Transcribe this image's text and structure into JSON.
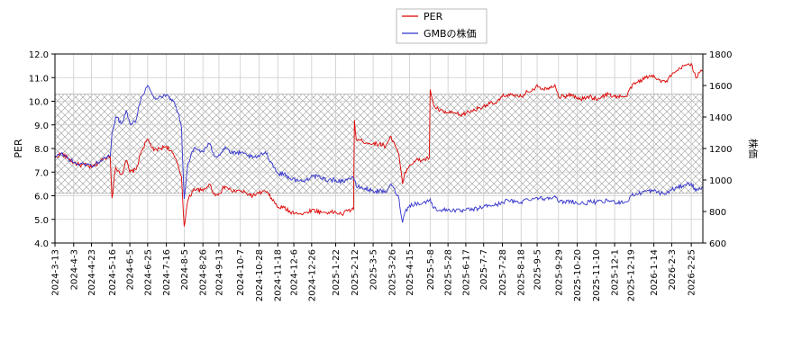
{
  "chart_data": {
    "type": "line",
    "xlabel": "",
    "ylabel_left": "PER",
    "ylabel_right": "株価",
    "ylim_left": [
      4.0,
      12.0
    ],
    "yticks_left": [
      "4.0",
      "5.0",
      "6.0",
      "7.0",
      "8.0",
      "9.0",
      "10.0",
      "11.0",
      "12.0"
    ],
    "ylim_right": [
      600,
      1800
    ],
    "yticks_right": [
      "600",
      "800",
      "1000",
      "1200",
      "1400",
      "1600",
      "1800"
    ],
    "x_start": "2024-03-13",
    "x_end": "2026-03-10",
    "xtick_labels": [
      "2024-3-13",
      "2024-4-3",
      "2024-4-23",
      "2024-5-16",
      "2024-6-5",
      "2024-6-25",
      "2024-7-16",
      "2024-8-5",
      "2024-8-26",
      "2024-9-13",
      "2024-10-7",
      "2024-10-28",
      "2024-11-18",
      "2024-12-6",
      "2024-12-26",
      "2025-1-22",
      "2025-2-12",
      "2025-3-5",
      "2025-3-26",
      "2025-4-15",
      "2025-5-8",
      "2025-5-28",
      "2025-6-17",
      "2025-7-7",
      "2025-7-28",
      "2025-8-18",
      "2025-9-5",
      "2025-9-29",
      "2025-10-20",
      "2025-11-10",
      "2025-12-1",
      "2025-12-19",
      "2026-1-14",
      "2026-2-3",
      "2026-2-25"
    ],
    "shaded_band_left": [
      6.1,
      10.3
    ],
    "grid": true,
    "legend_position": "top-center",
    "colors": {
      "per": "#dd0000",
      "price": "#3333cc"
    },
    "series": [
      {
        "name": "PER",
        "axis": "left",
        "points": [
          [
            "2024-03-13",
            7.6
          ],
          [
            "2024-03-20",
            7.8
          ],
          [
            "2024-03-27",
            7.6
          ],
          [
            "2024-04-03",
            7.4
          ],
          [
            "2024-04-10",
            7.3
          ],
          [
            "2024-04-17",
            7.3
          ],
          [
            "2024-04-23",
            7.2
          ],
          [
            "2024-05-01",
            7.4
          ],
          [
            "2024-05-08",
            7.6
          ],
          [
            "2024-05-14",
            7.7
          ],
          [
            "2024-05-16",
            5.9
          ],
          [
            "2024-05-20",
            7.2
          ],
          [
            "2024-05-27",
            6.9
          ],
          [
            "2024-06-01",
            7.5
          ],
          [
            "2024-06-05",
            7.0
          ],
          [
            "2024-06-12",
            7.1
          ],
          [
            "2024-06-18",
            7.9
          ],
          [
            "2024-06-25",
            8.4
          ],
          [
            "2024-07-02",
            7.9
          ],
          [
            "2024-07-09",
            8.0
          ],
          [
            "2024-07-16",
            8.1
          ],
          [
            "2024-07-23",
            7.8
          ],
          [
            "2024-07-29",
            7.3
          ],
          [
            "2024-08-02",
            6.8
          ],
          [
            "2024-08-05",
            4.7
          ],
          [
            "2024-08-09",
            5.8
          ],
          [
            "2024-08-16",
            6.3
          ],
          [
            "2024-08-26",
            6.2
          ],
          [
            "2024-09-02",
            6.5
          ],
          [
            "2024-09-09",
            6.0
          ],
          [
            "2024-09-13",
            6.1
          ],
          [
            "2024-09-20",
            6.4
          ],
          [
            "2024-09-27",
            6.2
          ],
          [
            "2024-10-07",
            6.2
          ],
          [
            "2024-10-14",
            6.1
          ],
          [
            "2024-10-21",
            6.0
          ],
          [
            "2024-10-28",
            6.1
          ],
          [
            "2024-11-04",
            6.2
          ],
          [
            "2024-11-11",
            5.9
          ],
          [
            "2024-11-18",
            5.5
          ],
          [
            "2024-11-25",
            5.5
          ],
          [
            "2024-12-02",
            5.3
          ],
          [
            "2024-12-09",
            5.3
          ],
          [
            "2024-12-16",
            5.2
          ],
          [
            "2024-12-20",
            5.3
          ],
          [
            "2024-12-26",
            5.4
          ],
          [
            "2025-01-06",
            5.3
          ],
          [
            "2025-01-14",
            5.3
          ],
          [
            "2025-01-22",
            5.3
          ],
          [
            "2025-01-29",
            5.2
          ],
          [
            "2025-02-05",
            5.4
          ],
          [
            "2025-02-11",
            5.4
          ],
          [
            "2025-02-12",
            9.2
          ],
          [
            "2025-02-14",
            8.4
          ],
          [
            "2025-02-21",
            8.3
          ],
          [
            "2025-03-05",
            8.2
          ],
          [
            "2025-03-12",
            8.2
          ],
          [
            "2025-03-19",
            8.1
          ],
          [
            "2025-03-24",
            8.5
          ],
          [
            "2025-03-28",
            8.3
          ],
          [
            "2025-04-03",
            7.7
          ],
          [
            "2025-04-07",
            6.5
          ],
          [
            "2025-04-10",
            7.0
          ],
          [
            "2025-04-15",
            7.3
          ],
          [
            "2025-04-22",
            7.5
          ],
          [
            "2025-04-29",
            7.5
          ],
          [
            "2025-05-07",
            7.6
          ],
          [
            "2025-05-08",
            10.5
          ],
          [
            "2025-05-12",
            9.8
          ],
          [
            "2025-05-19",
            9.6
          ],
          [
            "2025-05-28",
            9.5
          ],
          [
            "2025-06-04",
            9.5
          ],
          [
            "2025-06-11",
            9.4
          ],
          [
            "2025-06-17",
            9.5
          ],
          [
            "2025-06-24",
            9.6
          ],
          [
            "2025-07-01",
            9.7
          ],
          [
            "2025-07-07",
            9.8
          ],
          [
            "2025-07-14",
            9.9
          ],
          [
            "2025-07-21",
            9.9
          ],
          [
            "2025-07-28",
            10.2
          ],
          [
            "2025-08-04",
            10.3
          ],
          [
            "2025-08-11",
            10.2
          ],
          [
            "2025-08-18",
            10.2
          ],
          [
            "2025-08-25",
            10.4
          ],
          [
            "2025-09-01",
            10.5
          ],
          [
            "2025-09-05",
            10.7
          ],
          [
            "2025-09-12",
            10.5
          ],
          [
            "2025-09-19",
            10.6
          ],
          [
            "2025-09-25",
            10.7
          ],
          [
            "2025-09-29",
            10.2
          ],
          [
            "2025-10-06",
            10.2
          ],
          [
            "2025-10-13",
            10.3
          ],
          [
            "2025-10-20",
            10.1
          ],
          [
            "2025-10-27",
            10.1
          ],
          [
            "2025-11-03",
            10.2
          ],
          [
            "2025-11-10",
            10.1
          ],
          [
            "2025-11-17",
            10.2
          ],
          [
            "2025-11-24",
            10.3
          ],
          [
            "2025-12-01",
            10.2
          ],
          [
            "2025-12-08",
            10.2
          ],
          [
            "2025-12-15",
            10.2
          ],
          [
            "2025-12-19",
            10.6
          ],
          [
            "2025-12-26",
            10.8
          ],
          [
            "2026-01-05",
            11.0
          ],
          [
            "2026-01-14",
            11.1
          ],
          [
            "2026-01-20",
            10.9
          ],
          [
            "2026-01-27",
            10.8
          ],
          [
            "2026-02-03",
            11.1
          ],
          [
            "2026-02-10",
            11.3
          ],
          [
            "2026-02-17",
            11.5
          ],
          [
            "2026-02-25",
            11.6
          ],
          [
            "2026-03-02",
            11.0
          ],
          [
            "2026-03-06",
            11.2
          ],
          [
            "2026-03-10",
            11.3
          ]
        ]
      },
      {
        "name": "GMBの株価",
        "axis": "right",
        "points": [
          [
            "2024-03-13",
            1140
          ],
          [
            "2024-03-20",
            1170
          ],
          [
            "2024-03-27",
            1140
          ],
          [
            "2024-04-03",
            1110
          ],
          [
            "2024-04-10",
            1100
          ],
          [
            "2024-04-17",
            1100
          ],
          [
            "2024-04-23",
            1090
          ],
          [
            "2024-05-01",
            1110
          ],
          [
            "2024-05-08",
            1140
          ],
          [
            "2024-05-14",
            1150
          ],
          [
            "2024-05-16",
            1300
          ],
          [
            "2024-05-20",
            1400
          ],
          [
            "2024-05-27",
            1360
          ],
          [
            "2024-06-01",
            1440
          ],
          [
            "2024-06-05",
            1360
          ],
          [
            "2024-06-12",
            1380
          ],
          [
            "2024-06-18",
            1530
          ],
          [
            "2024-06-25",
            1600
          ],
          [
            "2024-07-02",
            1520
          ],
          [
            "2024-07-09",
            1530
          ],
          [
            "2024-07-16",
            1540
          ],
          [
            "2024-07-23",
            1510
          ],
          [
            "2024-07-29",
            1430
          ],
          [
            "2024-08-02",
            1330
          ],
          [
            "2024-08-05",
            880
          ],
          [
            "2024-08-09",
            1100
          ],
          [
            "2024-08-16",
            1200
          ],
          [
            "2024-08-26",
            1180
          ],
          [
            "2024-09-02",
            1230
          ],
          [
            "2024-09-09",
            1150
          ],
          [
            "2024-09-13",
            1160
          ],
          [
            "2024-09-20",
            1210
          ],
          [
            "2024-09-27",
            1170
          ],
          [
            "2024-10-07",
            1170
          ],
          [
            "2024-10-14",
            1160
          ],
          [
            "2024-10-21",
            1140
          ],
          [
            "2024-10-28",
            1150
          ],
          [
            "2024-11-04",
            1180
          ],
          [
            "2024-11-11",
            1110
          ],
          [
            "2024-11-18",
            1040
          ],
          [
            "2024-11-25",
            1040
          ],
          [
            "2024-12-02",
            1010
          ],
          [
            "2024-12-09",
            1000
          ],
          [
            "2024-12-16",
            990
          ],
          [
            "2024-12-20",
            1000
          ],
          [
            "2024-12-26",
            1030
          ],
          [
            "2025-01-06",
            1010
          ],
          [
            "2025-01-14",
            1000
          ],
          [
            "2025-01-22",
            1000
          ],
          [
            "2025-01-29",
            990
          ],
          [
            "2025-02-05",
            1010
          ],
          [
            "2025-02-11",
            1010
          ],
          [
            "2025-02-12",
            1000
          ],
          [
            "2025-02-14",
            960
          ],
          [
            "2025-02-21",
            950
          ],
          [
            "2025-03-05",
            930
          ],
          [
            "2025-03-12",
            930
          ],
          [
            "2025-03-19",
            920
          ],
          [
            "2025-03-24",
            970
          ],
          [
            "2025-03-28",
            950
          ],
          [
            "2025-04-03",
            880
          ],
          [
            "2025-04-07",
            730
          ],
          [
            "2025-04-10",
            800
          ],
          [
            "2025-04-15",
            840
          ],
          [
            "2025-04-22",
            850
          ],
          [
            "2025-04-29",
            850
          ],
          [
            "2025-05-07",
            870
          ],
          [
            "2025-05-08",
            880
          ],
          [
            "2025-05-12",
            820
          ],
          [
            "2025-05-19",
            810
          ],
          [
            "2025-05-28",
            810
          ],
          [
            "2025-06-04",
            810
          ],
          [
            "2025-06-11",
            800
          ],
          [
            "2025-06-17",
            810
          ],
          [
            "2025-06-24",
            810
          ],
          [
            "2025-07-01",
            820
          ],
          [
            "2025-07-07",
            830
          ],
          [
            "2025-07-14",
            840
          ],
          [
            "2025-07-21",
            840
          ],
          [
            "2025-07-28",
            860
          ],
          [
            "2025-08-04",
            870
          ],
          [
            "2025-08-11",
            860
          ],
          [
            "2025-08-18",
            860
          ],
          [
            "2025-08-25",
            880
          ],
          [
            "2025-09-01",
            880
          ],
          [
            "2025-09-05",
            890
          ],
          [
            "2025-09-12",
            880
          ],
          [
            "2025-09-19",
            890
          ],
          [
            "2025-09-25",
            900
          ],
          [
            "2025-09-29",
            860
          ],
          [
            "2025-10-06",
            860
          ],
          [
            "2025-10-13",
            870
          ],
          [
            "2025-10-20",
            850
          ],
          [
            "2025-10-27",
            850
          ],
          [
            "2025-11-03",
            860
          ],
          [
            "2025-11-10",
            860
          ],
          [
            "2025-11-17",
            860
          ],
          [
            "2025-11-24",
            870
          ],
          [
            "2025-12-01",
            860
          ],
          [
            "2025-12-08",
            860
          ],
          [
            "2025-12-15",
            860
          ],
          [
            "2025-12-19",
            900
          ],
          [
            "2025-12-26",
            910
          ],
          [
            "2026-01-05",
            930
          ],
          [
            "2026-01-14",
            930
          ],
          [
            "2026-01-20",
            920
          ],
          [
            "2026-01-27",
            910
          ],
          [
            "2026-02-03",
            940
          ],
          [
            "2026-02-10",
            950
          ],
          [
            "2026-02-17",
            970
          ],
          [
            "2026-02-25",
            980
          ],
          [
            "2026-03-02",
            930
          ],
          [
            "2026-03-06",
            950
          ],
          [
            "2026-03-10",
            950
          ]
        ]
      }
    ]
  }
}
